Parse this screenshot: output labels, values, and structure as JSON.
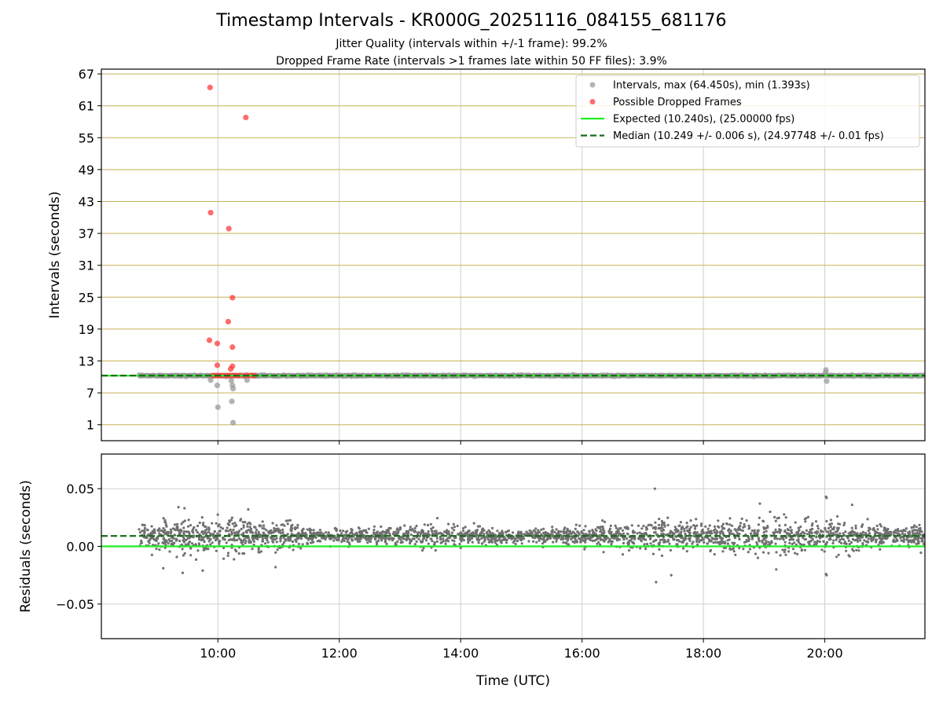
{
  "figure": {
    "title": "Timestamp Intervals - KR000G_20251116_084155_681176",
    "subtitle_1": "Jitter Quality (intervals within +/-1 frame): 99.2%",
    "subtitle_2": "Dropped Frame Rate (intervals >1 frames late within 50 FF files): 3.9%"
  },
  "colors": {
    "intervals": "#999999",
    "dropped": "#ff3b3b",
    "expected": "#22ee22",
    "median": "#1a6b1a",
    "hgrid_top": "#c9b25a",
    "grid": "#cfcfcf",
    "residuals": "#707070"
  },
  "chart_data": [
    {
      "type": "scatter",
      "name": "intervals-panel",
      "ylabel": "Intervals (seconds)",
      "xlabel": "",
      "xlim": [
        8.08,
        21.65
      ],
      "ylim": [
        -2.0,
        67.9
      ],
      "xticks": [
        10,
        12,
        14,
        16,
        18,
        20
      ],
      "xtick_labels": [
        "10:00",
        "12:00",
        "14:00",
        "16:00",
        "18:00",
        "20:00"
      ],
      "show_xtick_labels": false,
      "yticks": [
        1,
        7,
        13,
        19,
        25,
        31,
        37,
        43,
        49,
        55,
        61,
        67
      ],
      "ytick_labels": [
        "1",
        "7",
        "13",
        "19",
        "25",
        "31",
        "37",
        "43",
        "49",
        "55",
        "61",
        "67"
      ],
      "grid": true,
      "legend": {
        "placement": "top-right",
        "entries": [
          {
            "label": "Intervals, max (64.450s), min (1.393s)",
            "kind": "marker",
            "series": "intervals"
          },
          {
            "label": "Possible Dropped Frames",
            "kind": "marker",
            "series": "dropped"
          },
          {
            "label": "Expected (10.240s), (25.00000 fps)",
            "kind": "line",
            "series": "expected"
          },
          {
            "label": "Median (10.249 +/- 0.006 s), (24.97748 +/- 0.01 fps)",
            "kind": "dashed",
            "series": "median"
          }
        ]
      },
      "series": [
        {
          "name": "intervals",
          "band": {
            "x_start": 8.7,
            "x_end": 21.65,
            "y": 10.24,
            "y_spread": 0.15
          },
          "points": [
            {
              "x": 9.88,
              "y": 9.4
            },
            {
              "x": 9.99,
              "y": 8.4
            },
            {
              "x": 10.0,
              "y": 4.3
            },
            {
              "x": 10.22,
              "y": 9.3
            },
            {
              "x": 10.24,
              "y": 8.4
            },
            {
              "x": 10.25,
              "y": 7.8
            },
            {
              "x": 10.23,
              "y": 5.4
            },
            {
              "x": 10.25,
              "y": 1.4
            },
            {
              "x": 10.48,
              "y": 9.4
            },
            {
              "x": 20.02,
              "y": 11.3
            },
            {
              "x": 20.03,
              "y": 9.2
            },
            {
              "x": 20.01,
              "y": 10.8
            }
          ]
        },
        {
          "name": "dropped",
          "points": [
            {
              "x": 9.87,
              "y": 64.45
            },
            {
              "x": 10.46,
              "y": 58.8
            },
            {
              "x": 9.88,
              "y": 40.9
            },
            {
              "x": 10.18,
              "y": 37.9
            },
            {
              "x": 10.24,
              "y": 24.9
            },
            {
              "x": 10.17,
              "y": 20.4
            },
            {
              "x": 9.86,
              "y": 16.9
            },
            {
              "x": 9.99,
              "y": 16.3
            },
            {
              "x": 10.24,
              "y": 15.6
            },
            {
              "x": 9.99,
              "y": 12.2
            },
            {
              "x": 10.24,
              "y": 12.0
            },
            {
              "x": 10.21,
              "y": 11.5
            },
            {
              "x": 9.92,
              "y": 10.25
            },
            {
              "x": 9.96,
              "y": 10.25
            },
            {
              "x": 10.0,
              "y": 10.25
            },
            {
              "x": 10.04,
              "y": 10.25
            },
            {
              "x": 10.08,
              "y": 10.25
            },
            {
              "x": 10.13,
              "y": 10.25
            },
            {
              "x": 10.17,
              "y": 10.25
            },
            {
              "x": 10.21,
              "y": 10.25
            },
            {
              "x": 10.25,
              "y": 10.25
            },
            {
              "x": 10.29,
              "y": 10.25
            },
            {
              "x": 10.33,
              "y": 10.25
            },
            {
              "x": 10.37,
              "y": 10.25
            },
            {
              "x": 10.45,
              "y": 10.25
            },
            {
              "x": 10.5,
              "y": 10.25
            },
            {
              "x": 10.55,
              "y": 10.25
            },
            {
              "x": 10.6,
              "y": 10.25
            }
          ]
        }
      ],
      "lines": [
        {
          "name": "expected",
          "y": 10.24,
          "style": "solid"
        },
        {
          "name": "median",
          "y": 10.249,
          "style": "dashed"
        }
      ]
    },
    {
      "type": "scatter",
      "name": "residuals-panel",
      "ylabel": "Residuals (seconds)",
      "xlabel": "Time (UTC)",
      "xlim": [
        8.08,
        21.65
      ],
      "ylim": [
        -0.08,
        0.08
      ],
      "xticks": [
        10,
        12,
        14,
        16,
        18,
        20
      ],
      "xtick_labels": [
        "10:00",
        "12:00",
        "14:00",
        "16:00",
        "18:00",
        "20:00"
      ],
      "show_xtick_labels": true,
      "yticks": [
        -0.05,
        0.0,
        0.05
      ],
      "ytick_labels": [
        "−0.05",
        "0.00",
        "0.05"
      ],
      "grid": true,
      "series": [
        {
          "name": "residuals",
          "cloud": {
            "x_start": 8.7,
            "x_end": 21.65,
            "count": 2600,
            "center": 0.009,
            "spread_profile": [
              {
                "x": 8.7,
                "s": 0.004
              },
              {
                "x": 9.5,
                "s": 0.007
              },
              {
                "x": 10.2,
                "s": 0.008
              },
              {
                "x": 10.9,
                "s": 0.006
              },
              {
                "x": 11.6,
                "s": 0.004
              },
              {
                "x": 12.4,
                "s": 0.003
              },
              {
                "x": 13.3,
                "s": 0.005
              },
              {
                "x": 14.0,
                "s": 0.004
              },
              {
                "x": 15.0,
                "s": 0.003
              },
              {
                "x": 16.3,
                "s": 0.004
              },
              {
                "x": 17.2,
                "s": 0.007
              },
              {
                "x": 18.0,
                "s": 0.006
              },
              {
                "x": 19.0,
                "s": 0.008
              },
              {
                "x": 19.8,
                "s": 0.007
              },
              {
                "x": 20.6,
                "s": 0.006
              },
              {
                "x": 21.65,
                "s": 0.004
              }
            ]
          },
          "points": [
            {
              "x": 17.2,
              "y": 0.05
            },
            {
              "x": 20.02,
              "y": 0.043
            },
            {
              "x": 20.03,
              "y": 0.042
            },
            {
              "x": 17.22,
              "y": -0.031
            },
            {
              "x": 17.47,
              "y": -0.025
            },
            {
              "x": 20.02,
              "y": -0.024
            },
            {
              "x": 20.03,
              "y": -0.025
            },
            {
              "x": 18.93,
              "y": 0.037
            },
            {
              "x": 9.35,
              "y": 0.034
            },
            {
              "x": 9.45,
              "y": 0.033
            },
            {
              "x": 10.5,
              "y": 0.032
            },
            {
              "x": 20.45,
              "y": 0.036
            },
            {
              "x": 19.2,
              "y": -0.02
            },
            {
              "x": 9.1,
              "y": -0.019
            },
            {
              "x": 9.75,
              "y": -0.021
            },
            {
              "x": 10.95,
              "y": -0.018
            },
            {
              "x": 9.42,
              "y": -0.023
            }
          ]
        }
      ],
      "lines": [
        {
          "name": "expected",
          "y": 0.0,
          "style": "solid"
        },
        {
          "name": "median",
          "y": 0.009,
          "style": "dashed"
        }
      ]
    }
  ]
}
